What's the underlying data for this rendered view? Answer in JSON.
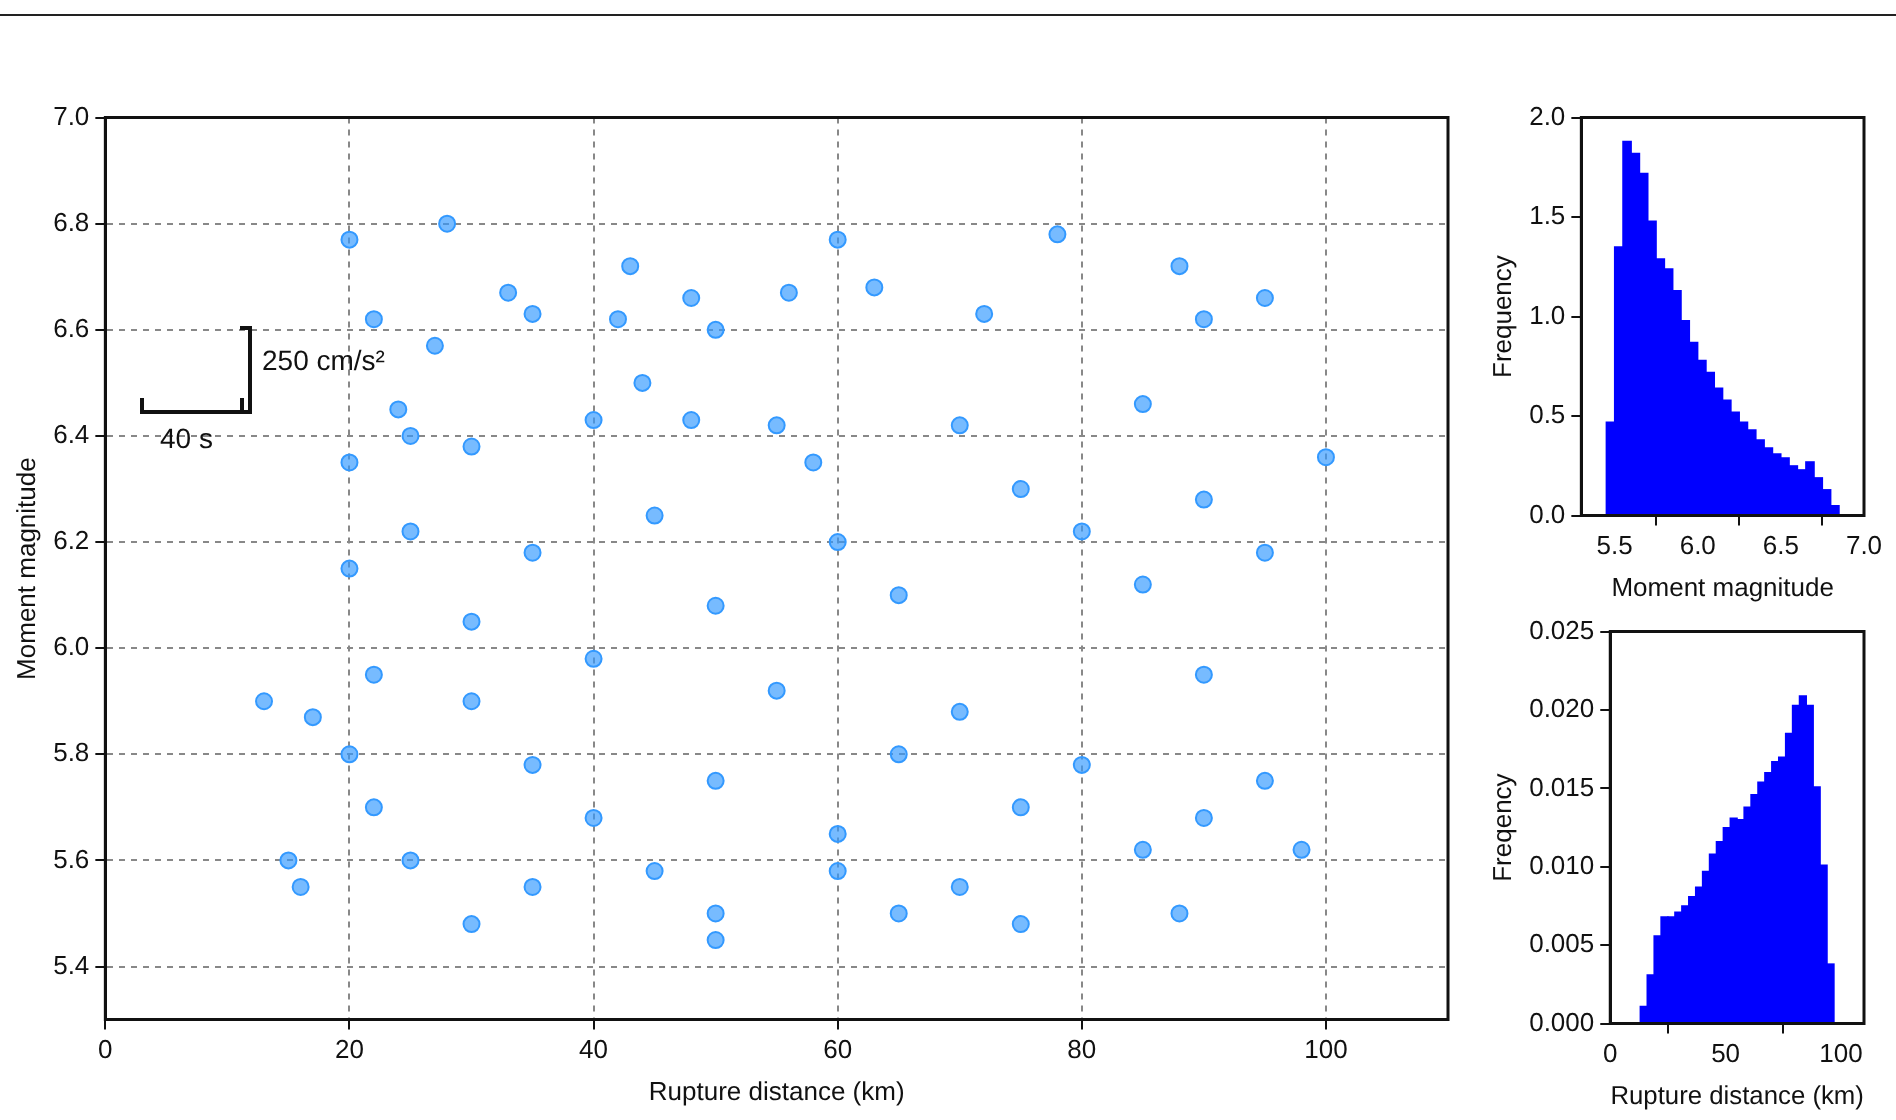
{
  "chart_data": [
    {
      "type": "scatter",
      "xlabel": "Rupture distance (km)",
      "ylabel": "Moment magnitude",
      "xlim": [
        0,
        110
      ],
      "xticks": [
        0,
        20,
        40,
        60,
        80,
        100
      ],
      "ylim": [
        5.3,
        7.0
      ],
      "yticks": [
        5.4,
        5.6,
        5.8,
        {
          "value": 6,
          "label": "6.0"
        },
        6.2,
        6.4,
        6.6,
        6.8,
        {
          "value": 7,
          "label": "7.0"
        }
      ],
      "grid": true,
      "legend": false,
      "marker": "circle",
      "annotations": [
        "250 cm/s²",
        "40 s"
      ],
      "series": [
        {
          "color": "#3399ff",
          "x": [
            20,
            28,
            22,
            27,
            33,
            35,
            42,
            43,
            48,
            50,
            60,
            56,
            63,
            72,
            78,
            88,
            90,
            95,
            24,
            44,
            48,
            55,
            70,
            85,
            100,
            20,
            25,
            30,
            40,
            58,
            75,
            90,
            20,
            25,
            35,
            45,
            60,
            80,
            95,
            30,
            50,
            65,
            85,
            13,
            17,
            22,
            30,
            40,
            55,
            70,
            90,
            20,
            35,
            50,
            65,
            80,
            95,
            22,
            40,
            60,
            75,
            90,
            15,
            16,
            25,
            35,
            45,
            60,
            70,
            85,
            98,
            30,
            50,
            65,
            88,
            50,
            75
          ],
          "values": [
            6.77,
            6.8,
            6.62,
            6.57,
            6.67,
            6.63,
            6.62,
            6.72,
            6.66,
            6.6,
            6.77,
            6.67,
            6.68,
            6.63,
            6.78,
            6.72,
            6.62,
            6.66,
            6.45,
            6.5,
            6.43,
            6.42,
            6.42,
            6.46,
            6.36,
            6.35,
            6.4,
            6.38,
            6.43,
            6.35,
            6.3,
            6.28,
            6.15,
            6.22,
            6.18,
            6.25,
            6.2,
            6.22,
            6.18,
            6.05,
            6.08,
            6.1,
            6.12,
            5.9,
            5.87,
            5.95,
            5.9,
            5.98,
            5.92,
            5.88,
            5.95,
            5.8,
            5.78,
            5.75,
            5.8,
            5.78,
            5.75,
            5.7,
            5.68,
            5.65,
            5.7,
            5.68,
            5.6,
            5.55,
            5.6,
            5.55,
            5.58,
            5.58,
            5.55,
            5.62,
            5.62,
            5.48,
            5.5,
            5.5,
            5.5,
            5.45,
            5.48
          ]
        }
      ]
    },
    {
      "type": "histogram",
      "xlabel": "Moment magnitude",
      "ylabel": "Frequency",
      "color": "#0000ff",
      "xlim": [
        5.3,
        7.0
      ],
      "xticks": [
        5.5,
        {
          "value": 6,
          "label": "6.0"
        },
        6.5,
        {
          "value": 7,
          "label": "7.0"
        }
      ],
      "ylim": [
        0,
        2.0
      ],
      "yticks": [
        {
          "value": 0,
          "label": "0.0"
        },
        0.5,
        {
          "value": 1,
          "label": "1.0"
        },
        1.5,
        {
          "value": 2,
          "label": "2.0"
        }
      ],
      "bins": [
        5.45,
        5.5,
        5.55,
        5.6,
        5.65,
        5.7,
        5.75,
        5.8,
        5.85,
        5.9,
        5.95,
        6.0,
        6.05,
        6.1,
        6.15,
        6.2,
        6.25,
        6.3,
        6.35,
        6.4,
        6.45,
        6.5,
        6.55,
        6.6,
        6.65,
        6.7,
        6.75,
        6.8,
        6.85
      ],
      "values": [
        0.47,
        1.35,
        1.88,
        1.82,
        1.72,
        1.48,
        1.29,
        1.24,
        1.13,
        0.98,
        0.87,
        0.78,
        0.72,
        0.64,
        0.58,
        0.52,
        0.47,
        0.43,
        0.38,
        0.34,
        0.31,
        0.29,
        0.25,
        0.23,
        0.27,
        0.19,
        0.13,
        0.05
      ]
    },
    {
      "type": "histogram",
      "xlabel": "Rupture distance (km)",
      "ylabel": "Freqency",
      "color": "#0000ff",
      "xlim": [
        0,
        110
      ],
      "xticks": [
        0,
        50,
        100
      ],
      "ylim": [
        0,
        0.025
      ],
      "yticks": [
        {
          "value": 0,
          "label": "0.000"
        },
        {
          "value": 0.005,
          "label": "0.005"
        },
        {
          "value": 0.01,
          "label": "0.010"
        },
        {
          "value": 0.015,
          "label": "0.015"
        },
        {
          "value": 0.02,
          "label": "0.020"
        },
        {
          "value": 0.025,
          "label": "0.025"
        }
      ],
      "bins": [
        10,
        13,
        16,
        19,
        22,
        25,
        28,
        31,
        34,
        37,
        40,
        43,
        46,
        49,
        52,
        55,
        58,
        61,
        64,
        67,
        70,
        73,
        76,
        79,
        82,
        85,
        88,
        91,
        94,
        97
      ],
      "values": [
        null,
        0.0011,
        0.0031,
        0.0056,
        0.0068,
        0.0068,
        0.0071,
        0.0075,
        0.0081,
        0.0087,
        0.0097,
        0.0108,
        0.0116,
        0.0125,
        0.0131,
        0.013,
        0.0138,
        0.0146,
        0.0154,
        0.016,
        0.0167,
        0.017,
        0.0185,
        0.0203,
        0.0209,
        0.0203,
        0.0151,
        0.0101,
        0.0038
      ]
    }
  ]
}
